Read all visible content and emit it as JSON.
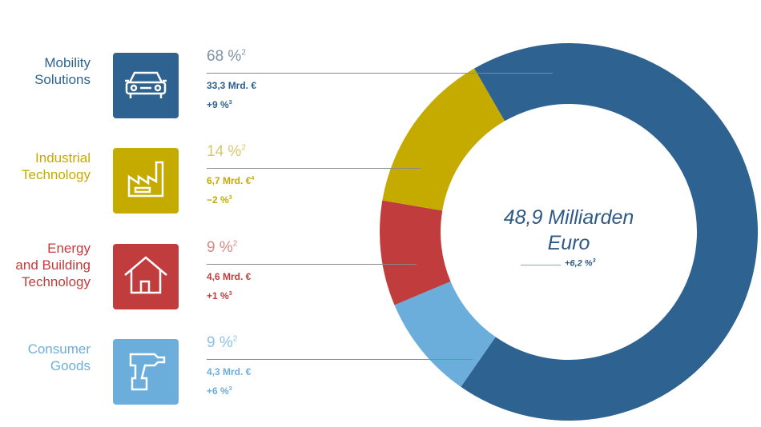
{
  "chart_data": {
    "type": "pie",
    "title": "48,9 Milliarden Euro",
    "total_growth": "+6,2 %",
    "total_growth_footnote": "3",
    "segments": [
      {
        "name": "Mobility Solutions",
        "line1": "Mobility",
        "line2": "Solutions",
        "line3": "",
        "percent": 68,
        "percent_label": "68 %",
        "revenue": "33,3 Mrd. €",
        "revenue_footnote": "",
        "growth": "+9 %",
        "color": "#2d6291",
        "pct_color": "#7d93a8",
        "icon": "car-icon"
      },
      {
        "name": "Industrial Technology",
        "line1": "Industrial",
        "line2": "Technology",
        "line3": "",
        "percent": 14,
        "percent_label": "14 %",
        "revenue": "6,7 Mrd. €",
        "revenue_footnote": "4",
        "growth": "−2 %",
        "color": "#c5ab00",
        "pct_color": "#d6c870",
        "icon": "factory-icon"
      },
      {
        "name": "Energy and Building Technology",
        "line1": "Energy",
        "line2": "and Building",
        "line3": "Technology",
        "percent": 9,
        "percent_label": "9 %",
        "revenue": "4,6 Mrd. €",
        "revenue_footnote": "",
        "growth": "+1 %",
        "color": "#c13c3d",
        "pct_color": "#d88a88",
        "icon": "house-icon"
      },
      {
        "name": "Consumer Goods",
        "line1": "Consumer",
        "line2": "Goods",
        "line3": "",
        "percent": 9,
        "percent_label": "9 %",
        "revenue": "4,3 Mrd. €",
        "revenue_footnote": "",
        "growth": "+6 %",
        "color": "#6caedb",
        "pct_color": "#8ec2e4",
        "icon": "drill-icon"
      }
    ],
    "donut_order": [
      0,
      3,
      2,
      1
    ],
    "start_angle_deg": -30
  },
  "footnotes": {
    "pct": "2",
    "growth": "3"
  },
  "center": {
    "line1": "48,9 Milliarden",
    "line2": "Euro"
  }
}
